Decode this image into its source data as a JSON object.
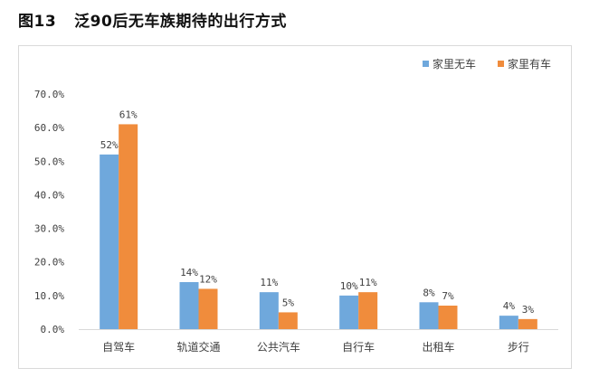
{
  "figure": {
    "number": "图13",
    "title": "泛90后无车族期待的出行方式"
  },
  "colors": {
    "series1": "#6fa8dc",
    "series2": "#f08c3c",
    "axis": "#d9d9d9",
    "text": "#404040"
  },
  "chart_data": {
    "type": "bar",
    "title": "",
    "xlabel": "",
    "ylabel": "",
    "categories": [
      "自驾车",
      "轨道交通",
      "公共汽车",
      "自行车",
      "出租车",
      "步行"
    ],
    "series": [
      {
        "name": "家里无车",
        "values": [
          52,
          14,
          11,
          10,
          8,
          4
        ],
        "labels": [
          "52%",
          "14%",
          "11%",
          "10%",
          "8%",
          "4%"
        ]
      },
      {
        "name": "家里有车",
        "values": [
          61,
          12,
          5,
          11,
          7,
          3
        ],
        "labels": [
          "61%",
          "12%",
          "5%",
          "11%",
          "7%",
          "3%"
        ]
      }
    ],
    "ylim": [
      0,
      70
    ],
    "yticks": [
      "0.0%",
      "10.0%",
      "20.0%",
      "30.0%",
      "40.0%",
      "50.0%",
      "60.0%",
      "70.0%"
    ],
    "grid": false,
    "legend": "top-right"
  }
}
